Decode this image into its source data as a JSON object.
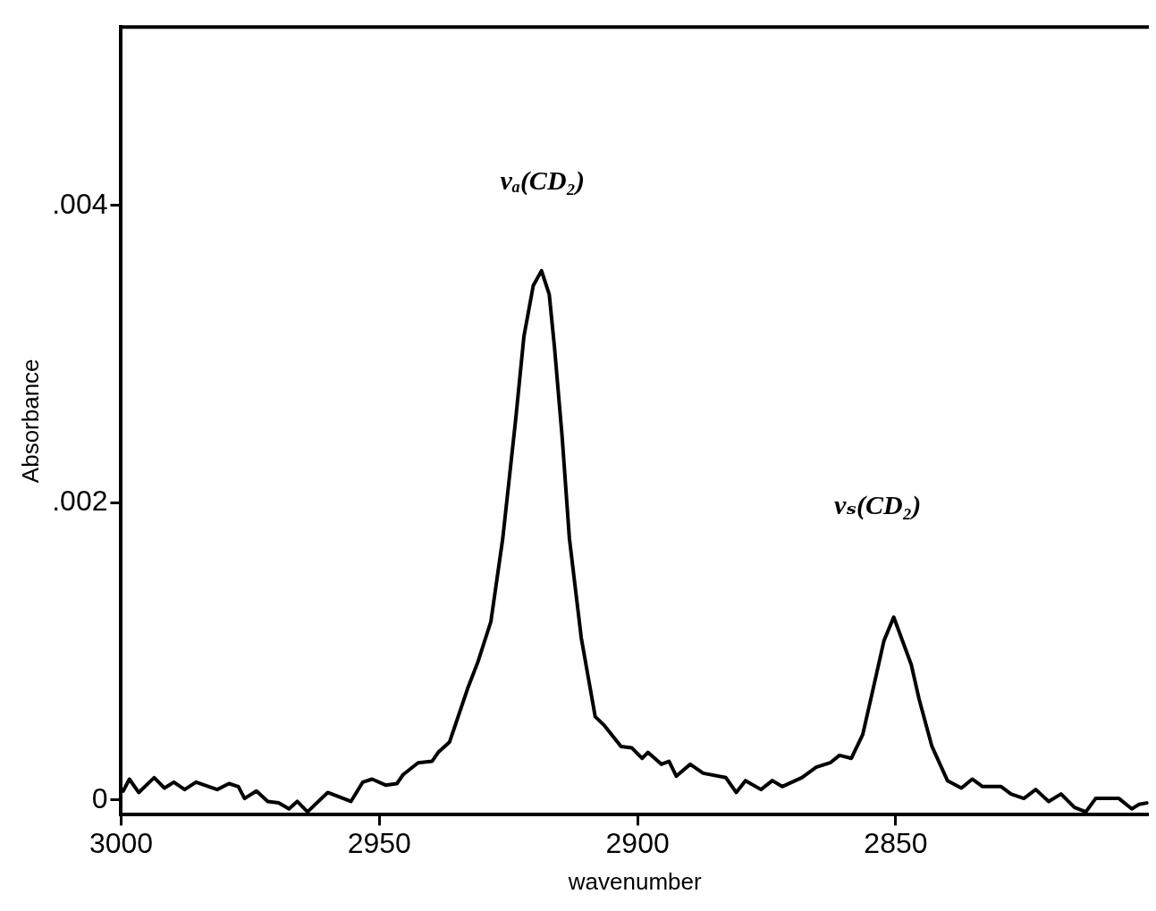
{
  "chart_data": {
    "type": "line",
    "xlabel": "wavenumber",
    "ylabel": "Absorbance",
    "annotations": [
      "νₐ(CD₂)",
      "νₛ(CD₂)"
    ],
    "xlim": [
      3000,
      2801
    ],
    "xticks": [
      3000,
      2950,
      2900,
      2850
    ],
    "ylim": [
      -0.0001,
      0.0052
    ],
    "yticks": [
      0,
      {
        "value": 0.002,
        "label": ".002"
      },
      {
        "value": 0.004,
        "label": ".004"
      }
    ],
    "grid": false,
    "legend": false,
    "marker": "none",
    "line_style": "solid",
    "series": [
      {
        "color": "#000000",
        "x": [
          2999.6,
          2998.4,
          2996.6,
          2993.6,
          2991.6,
          2989.8,
          2987.7,
          2985.5,
          2981.4,
          2979.1,
          2977.3,
          2976.1,
          2973.8,
          2971.6,
          2969.5,
          2967.5,
          2965.9,
          2963.9,
          2962.7,
          2960.0,
          2955.5,
          2953.2,
          2951.4,
          2948.8,
          2946.6,
          2945.4,
          2942.5,
          2939.8,
          2938.6,
          2936.4,
          2932.9,
          2930.9,
          2928.4,
          2926.1,
          2923.6,
          2922.0,
          2920.2,
          2918.6,
          2917.1,
          2916.1,
          2914.6,
          2913.2,
          2910.9,
          2908.2,
          2906.4,
          2903.2,
          2901.1,
          2899.1,
          2898.0,
          2895.4,
          2893.9,
          2892.5,
          2889.8,
          2887.3,
          2882.9,
          2880.9,
          2879.1,
          2876.1,
          2873.9,
          2872.0,
          2868.2,
          2865.4,
          2862.7,
          2860.9,
          2858.6,
          2856.4,
          2854.5,
          2852.3,
          2850.4,
          2847.0,
          2845.5,
          2843.0,
          2840.0,
          2837.3,
          2835.2,
          2833.2,
          2829.6,
          2827.7,
          2825.2,
          2822.9,
          2820.4,
          2818.0,
          2815.4,
          2813.2,
          2811.3,
          2806.8,
          2804.3,
          2802.9,
          2801.4
        ],
        "values": [
          6e-05,
          0.00014,
          5e-05,
          0.00015,
          8e-05,
          0.00012,
          7e-05,
          0.00012,
          7e-05,
          0.00011,
          9e-05,
          1e-05,
          6e-05,
          -1e-05,
          -2e-05,
          -6e-05,
          -1e-05,
          -8e-05,
          -4e-05,
          5e-05,
          -1e-05,
          0.00012,
          0.00014,
          0.0001,
          0.00011,
          0.00017,
          0.00025,
          0.00026,
          0.00032,
          0.00039,
          0.00075,
          0.00093,
          0.0012,
          0.00176,
          0.00256,
          0.00312,
          0.00346,
          0.00356,
          0.0034,
          0.00305,
          0.00244,
          0.00176,
          0.00109,
          0.00056,
          0.0005,
          0.00036,
          0.00035,
          0.00028,
          0.00032,
          0.00024,
          0.00026,
          0.00016,
          0.00024,
          0.00018,
          0.00015,
          5e-05,
          0.00013,
          7e-05,
          0.00013,
          9e-05,
          0.00015,
          0.00022,
          0.00025,
          0.0003,
          0.00028,
          0.00044,
          0.00073,
          0.00107,
          0.00123,
          0.00091,
          0.00068,
          0.00036,
          0.00013,
          8e-05,
          0.00014,
          9e-05,
          9e-05,
          4e-05,
          1e-05,
          7e-05,
          -1e-05,
          4e-05,
          -5e-05,
          -8e-05,
          1e-05,
          1e-05,
          -6e-05,
          -3e-05,
          -2e-05
        ]
      }
    ]
  }
}
